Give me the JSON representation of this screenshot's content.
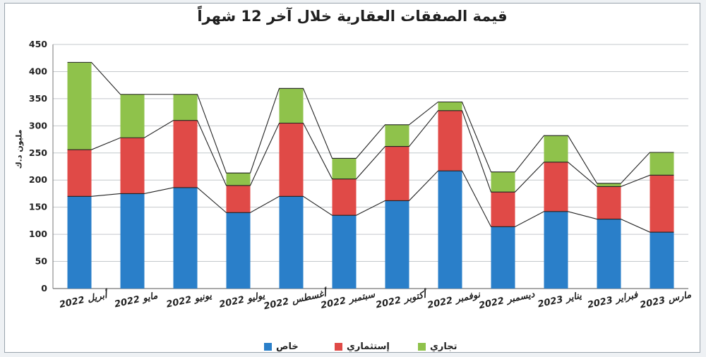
{
  "chart_data": {
    "type": "bar",
    "stacked": true,
    "title": "قيمة الصفقات العقارية خلال آخر 12 شهراً",
    "ylabel": "مليون د.ك",
    "ylim": [
      0,
      450
    ],
    "yticks": [
      0,
      50,
      100,
      150,
      200,
      250,
      300,
      350,
      400,
      450
    ],
    "grid": true,
    "legend_position": "bottom",
    "categories": [
      "أبريل 2022",
      "مايو 2022",
      "يونيو 2022",
      "يوليو 2022",
      "أغسطس 2022",
      "سبتمبر 2022",
      "أكتوبر 2022",
      "نوفمبر 2022",
      "ديسمبر 2022",
      "يناير 2023",
      "فبراير 2023",
      "مارس 2023"
    ],
    "series": [
      {
        "name": "خاص",
        "color": "#2a7fc9",
        "values": [
          170,
          175,
          186,
          140,
          170,
          135,
          162,
          217,
          114,
          142,
          128,
          104
        ]
      },
      {
        "name": "إستثماري",
        "color": "#e04a47",
        "values": [
          86,
          103,
          124,
          50,
          135,
          67,
          100,
          111,
          64,
          91,
          60,
          105
        ]
      },
      {
        "name": "تجاري",
        "color": "#8fc24b",
        "values": [
          161,
          80,
          48,
          23,
          64,
          38,
          40,
          16,
          37,
          49,
          6,
          42
        ]
      }
    ]
  }
}
